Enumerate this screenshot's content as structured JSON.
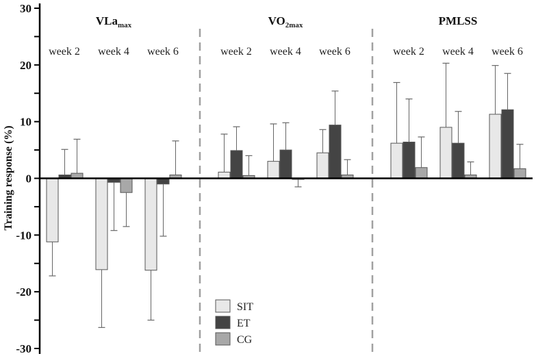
{
  "chart_data": {
    "type": "bar",
    "title": "",
    "xlabel": "",
    "ylabel": "Training response (%)",
    "ylim": [
      -30,
      30
    ],
    "yticks": [
      -30,
      -20,
      -10,
      0,
      10,
      20,
      30
    ],
    "grid": false,
    "legend_position": "bottom-center",
    "panels": [
      {
        "title": "VLa",
        "title_subscript": "max",
        "categories": [
          "week 2",
          "week 4",
          "week 6"
        ],
        "series": [
          {
            "name": "SIT",
            "values": [
              -11.2,
              -16.1,
              -16.2
            ],
            "error_ends": [
              -17.2,
              -26.3,
              -25.0
            ]
          },
          {
            "name": "ET",
            "values": [
              0.6,
              -0.7,
              -1.0
            ],
            "error_ends": [
              5.1,
              -9.2,
              -10.2
            ]
          },
          {
            "name": "CG",
            "values": [
              0.9,
              -2.5,
              0.6
            ],
            "error_ends": [
              6.9,
              -8.5,
              6.6
            ]
          }
        ]
      },
      {
        "title": "VO",
        "title_subscript": "2max",
        "categories": [
          "week 2",
          "week 4",
          "week 6"
        ],
        "series": [
          {
            "name": "SIT",
            "values": [
              1.1,
              3.0,
              4.5
            ],
            "error_ends": [
              7.8,
              9.6,
              8.6
            ]
          },
          {
            "name": "ET",
            "values": [
              4.9,
              5.0,
              9.4
            ],
            "error_ends": [
              9.1,
              9.8,
              15.4
            ]
          },
          {
            "name": "CG",
            "values": [
              0.5,
              -0.1,
              0.6
            ],
            "error_ends": [
              4.0,
              -1.5,
              3.3
            ]
          }
        ]
      },
      {
        "title": "PMLSS",
        "title_subscript": "",
        "categories": [
          "week 2",
          "week 4",
          "week 6"
        ],
        "series": [
          {
            "name": "SIT",
            "values": [
              6.2,
              9.0,
              11.3
            ],
            "error_ends": [
              16.9,
              20.3,
              19.9
            ]
          },
          {
            "name": "ET",
            "values": [
              6.4,
              6.2,
              12.1
            ],
            "error_ends": [
              14.0,
              11.8,
              18.5
            ]
          },
          {
            "name": "CG",
            "values": [
              1.9,
              0.6,
              1.7
            ],
            "error_ends": [
              7.3,
              2.9,
              6.0
            ]
          }
        ]
      }
    ],
    "legend": [
      {
        "name": "SIT",
        "color": "#e8e8e8"
      },
      {
        "name": "ET",
        "color": "#444444"
      },
      {
        "name": "CG",
        "color": "#a8a8a8"
      }
    ]
  },
  "colors": {
    "SIT": "#e8e8e8",
    "ET": "#444444",
    "CG": "#a8a8a8",
    "axis": "#000000",
    "divider": "#a0a0a0",
    "error": "#666666"
  }
}
